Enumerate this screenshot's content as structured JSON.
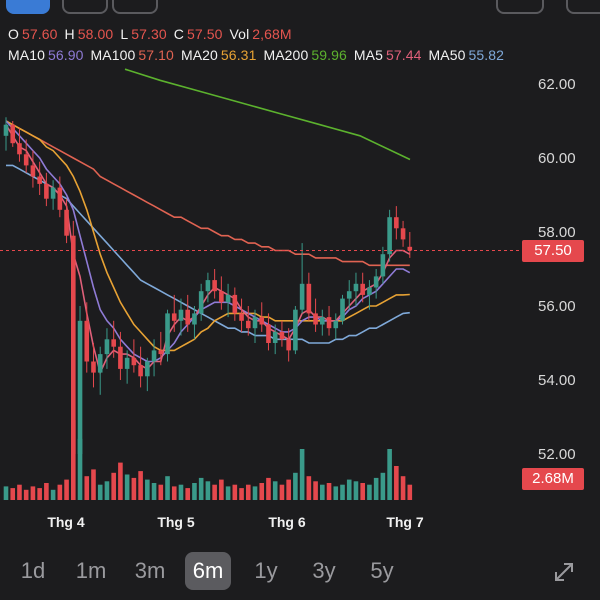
{
  "ohlc": {
    "o_label": "O",
    "o": "57.60",
    "h_label": "H",
    "h": "58.00",
    "l_label": "L",
    "l": "57.30",
    "c_label": "C",
    "c": "57.50",
    "vol_label": "Vol",
    "vol": "2,68M"
  },
  "ma": {
    "ma10_label": "MA10",
    "ma10": "56.90",
    "ma100_label": "MA100",
    "ma100": "57.10",
    "ma20_label": "MA20",
    "ma20": "56.31",
    "ma200_label": "MA200",
    "ma200": "59.96",
    "ma5_label": "MA5",
    "ma5": "57.44",
    "ma50_label": "MA50",
    "ma50": "55.82"
  },
  "price_tag": "57.50",
  "volume_tag": "2.68M",
  "ranges": [
    "1d",
    "1m",
    "3m",
    "6m",
    "1y",
    "3y",
    "5y"
  ],
  "active_range": "6m",
  "icons": {
    "expand": "expand-icon"
  },
  "colors": {
    "up": "#3a9a8a",
    "down": "#e5484d",
    "ma5": "#e0607a",
    "ma10": "#8f7bd6",
    "ma20": "#e7a234",
    "ma50": "#7fa9d9",
    "ma100": "#e06352",
    "ma200": "#5cb22e"
  },
  "chart_data": {
    "type": "candlestick",
    "y_ticks": [
      "62.00",
      "60.00",
      "58.00",
      "56.00",
      "54.00",
      "52.00"
    ],
    "ylim": [
      51,
      63
    ],
    "x_ticks": [
      "Thg 4",
      "Thg 5",
      "Thg 6",
      "Thg 7"
    ],
    "last_close": 57.5,
    "candles": [
      [
        60.6,
        61.1,
        60.2,
        60.9
      ],
      [
        60.9,
        61.0,
        60.3,
        60.4
      ],
      [
        60.4,
        60.8,
        59.9,
        60.1
      ],
      [
        60.1,
        60.5,
        59.6,
        59.8
      ],
      [
        59.8,
        60.2,
        59.2,
        59.5
      ],
      [
        59.5,
        59.9,
        59.0,
        59.3
      ],
      [
        59.3,
        59.6,
        58.7,
        58.9
      ],
      [
        58.9,
        59.4,
        58.6,
        59.2
      ],
      [
        59.2,
        59.5,
        58.4,
        58.6
      ],
      [
        58.6,
        58.9,
        57.7,
        57.9
      ],
      [
        57.9,
        58.3,
        51.6,
        52.0
      ],
      [
        52.0,
        56.0,
        51.8,
        55.6
      ],
      [
        55.6,
        56.1,
        54.2,
        54.5
      ],
      [
        54.5,
        55.0,
        53.8,
        54.2
      ],
      [
        54.2,
        54.9,
        53.6,
        54.7
      ],
      [
        54.7,
        55.4,
        54.3,
        55.1
      ],
      [
        55.1,
        55.6,
        54.6,
        54.9
      ],
      [
        54.9,
        55.3,
        54.0,
        54.3
      ],
      [
        54.3,
        54.8,
        53.9,
        54.6
      ],
      [
        54.6,
        55.1,
        54.2,
        54.4
      ],
      [
        54.4,
        54.9,
        53.8,
        54.1
      ],
      [
        54.1,
        54.6,
        53.7,
        54.5
      ],
      [
        54.5,
        55.1,
        54.1,
        54.8
      ],
      [
        54.8,
        55.3,
        54.4,
        54.7
      ],
      [
        54.7,
        55.9,
        54.5,
        55.8
      ],
      [
        55.8,
        56.3,
        55.3,
        55.6
      ],
      [
        55.6,
        56.2,
        55.2,
        55.9
      ],
      [
        55.9,
        56.3,
        55.3,
        55.5
      ],
      [
        55.5,
        56.0,
        55.1,
        55.8
      ],
      [
        55.8,
        56.6,
        55.6,
        56.4
      ],
      [
        56.4,
        56.9,
        56.1,
        56.7
      ],
      [
        56.7,
        57.0,
        56.2,
        56.4
      ],
      [
        56.4,
        56.8,
        55.9,
        56.1
      ],
      [
        56.1,
        56.6,
        55.7,
        56.3
      ],
      [
        56.3,
        56.5,
        55.6,
        55.8
      ],
      [
        55.8,
        56.2,
        55.3,
        55.6
      ],
      [
        55.6,
        56.0,
        55.2,
        55.4
      ],
      [
        55.4,
        55.9,
        55.0,
        55.7
      ],
      [
        55.7,
        56.1,
        55.3,
        55.5
      ],
      [
        55.5,
        55.8,
        54.8,
        55.0
      ],
      [
        55.0,
        55.5,
        54.7,
        55.3
      ],
      [
        55.3,
        55.6,
        54.9,
        55.1
      ],
      [
        55.1,
        55.4,
        54.5,
        54.8
      ],
      [
        54.8,
        56.0,
        54.7,
        55.9
      ],
      [
        55.9,
        57.7,
        55.8,
        56.6
      ],
      [
        56.6,
        56.9,
        55.6,
        55.8
      ],
      [
        55.8,
        56.2,
        55.3,
        55.5
      ],
      [
        55.5,
        55.9,
        55.2,
        55.7
      ],
      [
        55.7,
        56.0,
        55.2,
        55.4
      ],
      [
        55.4,
        55.8,
        55.1,
        55.6
      ],
      [
        55.6,
        56.3,
        55.5,
        56.2
      ],
      [
        56.2,
        56.7,
        55.9,
        56.4
      ],
      [
        56.4,
        56.9,
        56.0,
        56.6
      ],
      [
        56.6,
        56.9,
        56.1,
        56.3
      ],
      [
        56.3,
        56.7,
        55.9,
        56.5
      ],
      [
        56.5,
        57.0,
        56.2,
        56.8
      ],
      [
        56.8,
        57.6,
        56.6,
        57.4
      ],
      [
        57.4,
        58.6,
        57.2,
        58.4
      ],
      [
        58.4,
        58.7,
        57.8,
        58.1
      ],
      [
        58.1,
        58.3,
        57.6,
        57.8
      ],
      [
        57.6,
        58.0,
        57.3,
        57.5
      ]
    ],
    "volumes": [
      0.8,
      0.7,
      0.9,
      0.6,
      0.8,
      0.7,
      1.0,
      0.6,
      0.9,
      1.2,
      4.7,
      3.6,
      1.4,
      1.8,
      0.9,
      1.1,
      1.6,
      2.2,
      1.5,
      1.3,
      1.7,
      1.2,
      1.0,
      0.9,
      1.4,
      0.8,
      0.9,
      0.7,
      1.0,
      1.3,
      1.1,
      0.9,
      1.2,
      0.8,
      0.9,
      0.7,
      0.9,
      0.8,
      1.0,
      1.3,
      1.1,
      0.9,
      1.2,
      1.6,
      3.0,
      1.4,
      1.1,
      0.9,
      1.0,
      0.8,
      0.9,
      1.2,
      1.1,
      1.0,
      0.9,
      1.3,
      1.6,
      3.0,
      2.0,
      1.4,
      0.9
    ],
    "ma5": [
      60.9,
      60.6,
      60.3,
      60.2,
      59.9,
      59.6,
      59.3,
      59.2,
      59.0,
      58.7,
      57.4,
      56.8,
      55.8,
      54.9,
      54.2,
      54.6,
      54.8,
      54.7,
      54.7,
      54.6,
      54.4,
      54.3,
      54.5,
      54.5,
      55.2,
      55.5,
      55.7,
      55.6,
      55.7,
      56.0,
      56.3,
      56.5,
      56.4,
      56.3,
      56.2,
      55.9,
      55.7,
      55.6,
      55.6,
      55.4,
      55.3,
      55.2,
      55.1,
      55.4,
      55.8,
      55.9,
      55.7,
      55.7,
      55.6,
      55.6,
      55.8,
      56.0,
      56.2,
      56.4,
      56.5,
      56.6,
      56.9,
      57.3,
      57.5,
      57.5,
      57.4
    ],
    "ma10": [
      61.0,
      60.8,
      60.6,
      60.4,
      60.2,
      60.0,
      59.7,
      59.5,
      59.3,
      59.0,
      58.6,
      57.9,
      57.2,
      56.5,
      55.9,
      55.6,
      55.4,
      55.1,
      54.9,
      54.7,
      54.6,
      54.5,
      54.5,
      54.6,
      54.8,
      55.0,
      55.3,
      55.5,
      55.7,
      55.9,
      56.0,
      56.1,
      56.1,
      56.1,
      56.0,
      55.9,
      55.8,
      55.7,
      55.6,
      55.5,
      55.4,
      55.3,
      55.3,
      55.4,
      55.6,
      55.7,
      55.7,
      55.6,
      55.6,
      55.6,
      55.7,
      55.9,
      56.0,
      56.2,
      56.3,
      56.4,
      56.6,
      56.8,
      57.0,
      57.0,
      56.9
    ],
    "ma20": [
      61.0,
      60.9,
      60.8,
      60.7,
      60.6,
      60.5,
      60.3,
      60.2,
      60.0,
      59.8,
      59.5,
      59.1,
      58.6,
      58.0,
      57.4,
      56.9,
      56.5,
      56.1,
      55.8,
      55.5,
      55.3,
      55.1,
      54.9,
      54.8,
      54.8,
      54.8,
      54.9,
      55.0,
      55.1,
      55.3,
      55.4,
      55.6,
      55.7,
      55.8,
      55.8,
      55.8,
      55.8,
      55.8,
      55.7,
      55.7,
      55.6,
      55.6,
      55.6,
      55.6,
      55.6,
      55.6,
      55.6,
      55.6,
      55.6,
      55.6,
      55.6,
      55.7,
      55.8,
      55.9,
      56.0,
      56.0,
      56.1,
      56.2,
      56.3,
      56.3,
      56.31
    ],
    "ma50": [
      59.8,
      59.8,
      59.7,
      59.6,
      59.5,
      59.4,
      59.3,
      59.2,
      59.0,
      58.9,
      58.7,
      58.5,
      58.3,
      58.1,
      57.9,
      57.7,
      57.5,
      57.3,
      57.1,
      56.9,
      56.7,
      56.6,
      56.5,
      56.4,
      56.3,
      56.2,
      56.1,
      56.0,
      55.9,
      55.8,
      55.7,
      55.6,
      55.5,
      55.4,
      55.4,
      55.3,
      55.3,
      55.2,
      55.2,
      55.2,
      55.1,
      55.1,
      55.1,
      55.1,
      55.1,
      55.0,
      55.0,
      55.0,
      55.0,
      55.1,
      55.1,
      55.2,
      55.2,
      55.3,
      55.4,
      55.4,
      55.5,
      55.6,
      55.7,
      55.8,
      55.82
    ],
    "ma100": [
      61.0,
      60.9,
      60.8,
      60.7,
      60.6,
      60.5,
      60.4,
      60.3,
      60.2,
      60.1,
      60.0,
      59.9,
      59.8,
      59.7,
      59.5,
      59.4,
      59.3,
      59.2,
      59.1,
      59.0,
      58.9,
      58.8,
      58.7,
      58.6,
      58.5,
      58.4,
      58.4,
      58.3,
      58.2,
      58.1,
      58.1,
      58.0,
      57.9,
      57.9,
      57.8,
      57.8,
      57.7,
      57.7,
      57.6,
      57.6,
      57.5,
      57.5,
      57.5,
      57.4,
      57.4,
      57.4,
      57.3,
      57.3,
      57.3,
      57.3,
      57.2,
      57.2,
      57.2,
      57.2,
      57.1,
      57.1,
      57.1,
      57.1,
      57.1,
      57.1,
      57.1
    ],
    "ma200": [
      [
        125,
        62.4
      ],
      [
        160,
        62.1
      ],
      [
        200,
        61.8
      ],
      [
        240,
        61.5
      ],
      [
        280,
        61.2
      ],
      [
        320,
        60.9
      ],
      [
        360,
        60.6
      ],
      [
        410,
        59.96
      ]
    ]
  }
}
